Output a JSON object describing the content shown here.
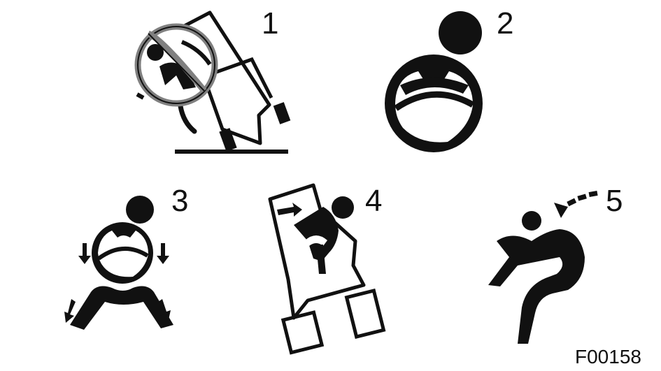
{
  "panels": [
    {
      "number": "1",
      "icon": "tilted-forklift-prohibited-icon"
    },
    {
      "number": "2",
      "icon": "operator-gripping-steering-wheel-icon"
    },
    {
      "number": "3",
      "icon": "operator-bracing-arms-legs-icon"
    },
    {
      "number": "4",
      "icon": "operator-leaning-away-in-tipping-cab-icon"
    },
    {
      "number": "5",
      "icon": "operator-leaning-forward-icon"
    }
  ],
  "figure_code": "F00158",
  "colors": {
    "ink": "#111111",
    "background": "#ffffff",
    "prohibition": "#808080"
  }
}
